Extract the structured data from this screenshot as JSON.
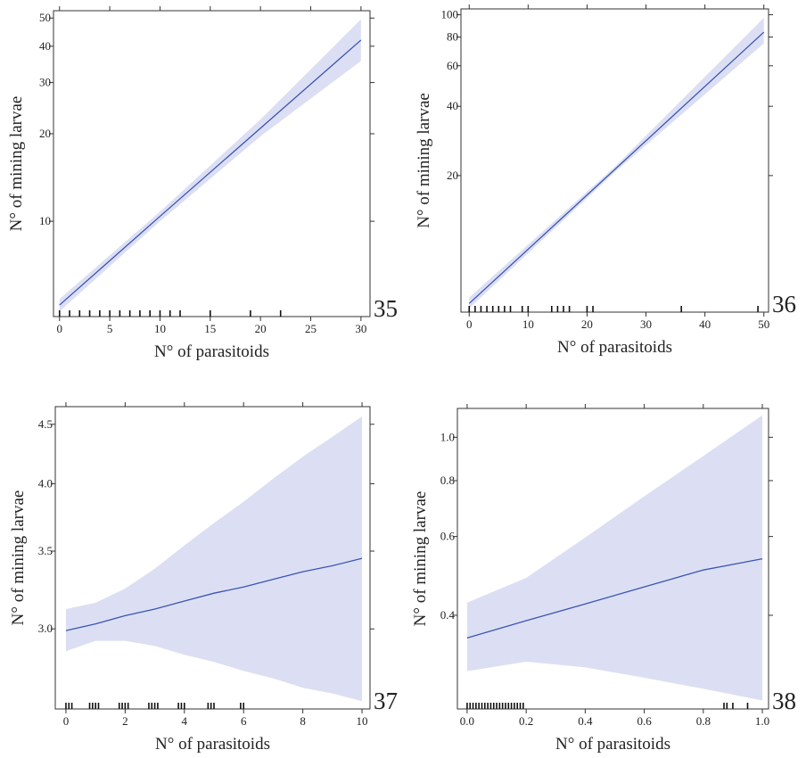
{
  "chart_data": [
    {
      "type": "line",
      "panel_label": "35",
      "xlabel": "N° of parasitoids",
      "ylabel": "N° of mining larvae",
      "x": [
        0,
        10,
        20,
        30
      ],
      "fit": [
        5.15,
        10.4,
        20.9,
        42
      ],
      "lower": [
        4.9,
        10.0,
        19.6,
        35.6
      ],
      "upper": [
        5.4,
        10.8,
        22.4,
        49.5
      ],
      "rug": [
        0,
        1,
        2,
        3,
        4,
        5,
        6,
        7,
        8,
        9,
        10,
        11,
        12,
        15,
        19,
        22
      ],
      "xlim": [
        -0.6,
        30.9
      ],
      "xticks": [
        0,
        5,
        10,
        15,
        20,
        25,
        30
      ],
      "ylim": [
        4.7,
        53
      ],
      "yticks": [
        10,
        20,
        30,
        40,
        50
      ],
      "log_y": true,
      "line_color": "#3a55b4",
      "band_color": "#dcdff3"
    },
    {
      "type": "line",
      "panel_label": "36",
      "xlabel": "N° of parasitoids",
      "ylabel": "N° of mining larvae",
      "x": [
        0,
        25,
        50
      ],
      "fit": [
        5.56,
        21.6,
        84
      ],
      "lower": [
        5.3,
        21.0,
        75
      ],
      "upper": [
        5.9,
        22.2,
        97
      ],
      "rug": [
        0,
        1,
        2,
        3,
        4,
        5,
        6,
        7,
        9,
        10,
        14,
        15,
        16,
        17,
        20,
        21,
        36,
        49
      ],
      "xlim": [
        -1.4,
        50.8
      ],
      "xticks": [
        0,
        10,
        20,
        30,
        40,
        50
      ],
      "ylim": [
        5.1,
        106
      ],
      "yticks": [
        20,
        40,
        60,
        80,
        100
      ],
      "log_y": true,
      "line_color": "#3a55b4",
      "band_color": "#dcdff3"
    },
    {
      "type": "line",
      "panel_label": "37",
      "xlabel": "N° of parasitoids",
      "ylabel": "N° of mining larvae",
      "x": [
        0,
        1,
        2,
        3,
        4,
        5,
        6,
        7,
        8,
        9,
        10
      ],
      "fit": [
        2.99,
        3.03,
        3.08,
        3.12,
        3.17,
        3.22,
        3.26,
        3.31,
        3.36,
        3.4,
        3.45
      ],
      "lower": [
        2.87,
        2.93,
        2.93,
        2.9,
        2.85,
        2.81,
        2.76,
        2.72,
        2.67,
        2.64,
        2.6
      ],
      "upper": [
        3.12,
        3.16,
        3.25,
        3.38,
        3.54,
        3.7,
        3.86,
        4.04,
        4.22,
        4.39,
        4.57
      ],
      "rug": [
        0,
        0.1,
        0.2,
        0.8,
        0.9,
        1,
        1.1,
        1.8,
        1.9,
        2,
        2.1,
        2.8,
        2.9,
        3,
        3.1,
        3.8,
        3.9,
        4,
        4.8,
        4.9,
        5,
        5.9,
        6
      ],
      "xlim": [
        -0.36,
        10.27
      ],
      "xticks": [
        0,
        2,
        4,
        6,
        8,
        10
      ],
      "ylim": [
        2.56,
        4.66
      ],
      "yticks": [
        {
          "value": 3,
          "label": "3.0"
        },
        3.5,
        {
          "value": 4,
          "label": "4.0"
        },
        4.5
      ],
      "log_y": true,
      "line_color": "#3a55b4",
      "band_color": "#dcdff3"
    },
    {
      "type": "line",
      "panel_label": "38",
      "xlabel": "N° of parasitoids",
      "ylabel": "N° of mining larvae",
      "x": [
        0,
        0.2,
        0.4,
        0.6,
        0.8,
        1
      ],
      "fit": [
        0.356,
        0.389,
        0.424,
        0.463,
        0.505,
        0.535
      ],
      "lower": [
        0.3,
        0.315,
        0.306,
        0.29,
        0.274,
        0.258
      ],
      "upper": [
        0.427,
        0.485,
        0.597,
        0.738,
        0.908,
        1.12
      ],
      "rug": [
        0,
        0.01,
        0.02,
        0.03,
        0.04,
        0.05,
        0.06,
        0.07,
        0.08,
        0.09,
        0.1,
        0.11,
        0.12,
        0.13,
        0.14,
        0.15,
        0.16,
        0.17,
        0.18,
        0.19,
        0.87,
        0.88,
        0.9,
        0.95
      ],
      "xlim": [
        -0.033,
        1.021
      ],
      "xticks": [
        {
          "value": 0,
          "label": "0.0"
        },
        0.2,
        0.4,
        0.6,
        0.8,
        {
          "value": 1,
          "label": "1.0"
        }
      ],
      "ylim": [
        0.247,
        1.16
      ],
      "yticks": [
        0.4,
        0.6,
        0.8,
        {
          "value": 1,
          "label": "1.0"
        }
      ],
      "log_y": true,
      "line_color": "#3a55b4",
      "band_color": "#dcdff3"
    }
  ]
}
